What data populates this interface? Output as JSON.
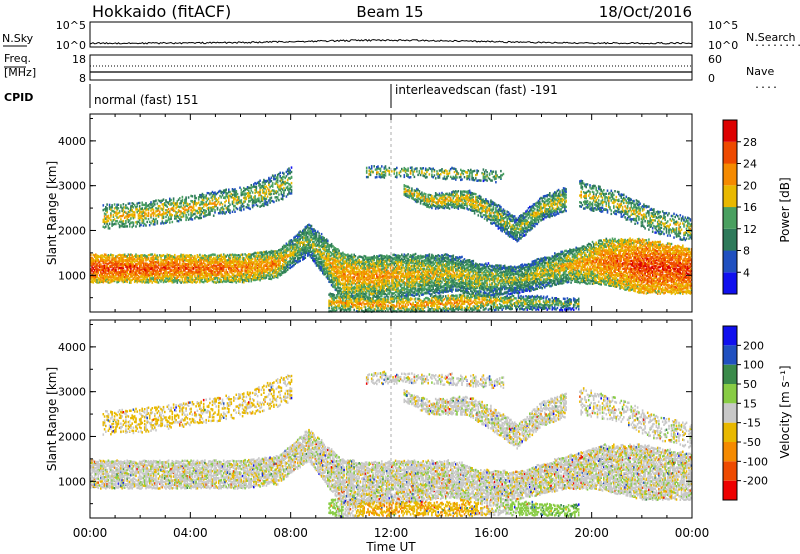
{
  "header": {
    "station": "Hokkaido (fitACF)",
    "beam": "Beam 15",
    "date": "18/Oct/2016"
  },
  "sky_panel": {
    "left_label": "N.Sky",
    "right_label": "N.Search",
    "right_legend": "........",
    "left_ticks": [
      "10^5",
      "10^0"
    ],
    "right_ticks": [
      "10^5",
      "10^0"
    ]
  },
  "freq_panel": {
    "left_label_1": "Freq.",
    "left_label_2": "[MHz]",
    "right_label": "Nave",
    "right_legend": "....",
    "left_ticks": [
      "18",
      "8"
    ],
    "right_ticks": [
      "60",
      "0"
    ]
  },
  "cpid": {
    "label": "CPID",
    "segments": [
      {
        "name": "normal (fast) 151",
        "start_hour": 0,
        "end_hour": 12
      },
      {
        "name": "interleavedscan (fast) -191",
        "start_hour": 12,
        "end_hour": 24
      }
    ]
  },
  "axes": {
    "ylabel": "Slant Range [km]",
    "xlabel": "Time UT",
    "yticks": [
      "1000",
      "2000",
      "3000",
      "4000"
    ],
    "xticks": [
      "00:00",
      "04:00",
      "08:00",
      "12:00",
      "16:00",
      "20:00",
      "00:00"
    ]
  },
  "colors": {
    "power": [
      "#1010ee",
      "#2050c0",
      "#2e7a5a",
      "#4aa060",
      "#e8b800",
      "#f58a00",
      "#ee4a00",
      "#dd0000"
    ],
    "velocity": [
      "#ee0000",
      "#ee4a00",
      "#f58a00",
      "#e8b800",
      "#c8c8c8",
      "#88cc44",
      "#3a8a4a",
      "#2050c0",
      "#1010ee"
    ]
  },
  "chart_data": [
    {
      "type": "heatmap",
      "panel": "power",
      "title": "",
      "xlabel": "",
      "ylabel": "Slant Range [km]",
      "xlim_hours": [
        0,
        24
      ],
      "ylim_km": [
        180,
        4600
      ],
      "colorbar": {
        "label": "Power [dB]",
        "range": [
          0,
          32
        ],
        "ticks": [
          "4",
          "8",
          "12",
          "16",
          "20",
          "24",
          "28"
        ]
      },
      "bands": [
        {
          "label": "main band",
          "t0": 0.0,
          "t1": 24.0,
          "keys": [
            [
              0,
              1150,
              300,
              28
            ],
            [
              3,
              1150,
              300,
              26
            ],
            [
              6,
              1150,
              300,
              24
            ],
            [
              7.5,
              1250,
              300,
              22
            ],
            [
              8,
              1500,
              300,
              18
            ],
            [
              8.7,
              1800,
              350,
              16
            ],
            [
              10,
              1000,
              500,
              22
            ],
            [
              11,
              950,
              450,
              22
            ],
            [
              13,
              1000,
              450,
              20
            ],
            [
              14.5,
              1050,
              400,
              18
            ],
            [
              15.5,
              900,
              350,
              18
            ],
            [
              17,
              900,
              300,
              16
            ],
            [
              19,
              1200,
              350,
              20
            ],
            [
              20.5,
              1300,
              500,
              24
            ],
            [
              22,
              1200,
              600,
              28
            ],
            [
              24,
              1100,
              500,
              28
            ]
          ],
          "density": 0.9
        },
        {
          "label": "lower dense echo",
          "t0": 9.5,
          "t1": 19.5,
          "keys": [
            [
              9.5,
              400,
              200,
              20
            ],
            [
              11,
              350,
              150,
              22
            ],
            [
              13,
              350,
              150,
              22
            ],
            [
              15,
              400,
              180,
              22
            ],
            [
              17,
              400,
              150,
              18
            ],
            [
              19.5,
              350,
              120,
              14
            ]
          ],
          "density": 0.75
        },
        {
          "label": "upper band",
          "t0": 0.5,
          "t1": 8.0,
          "keys": [
            [
              0.5,
              2300,
              250,
              20
            ],
            [
              2,
              2350,
              250,
              20
            ],
            [
              4,
              2500,
              250,
              20
            ],
            [
              6,
              2700,
              250,
              18
            ],
            [
              7.2,
              2900,
              300,
              18
            ],
            [
              8,
              3100,
              300,
              16
            ]
          ],
          "density": 0.55
        },
        {
          "label": "mid echo",
          "t0": 12.5,
          "t1": 19.0,
          "keys": [
            [
              12.5,
              2900,
              120,
              20
            ],
            [
              13.5,
              2650,
              150,
              20
            ],
            [
              15,
              2700,
              200,
              20
            ],
            [
              16,
              2400,
              250,
              18
            ],
            [
              17,
              2000,
              250,
              16
            ],
            [
              18,
              2500,
              250,
              18
            ],
            [
              19,
              2700,
              250,
              18
            ]
          ],
          "density": 0.8
        },
        {
          "label": "3200 km echo",
          "t0": 11.0,
          "t1": 16.5,
          "keys": [
            [
              11,
              3300,
              120,
              18
            ],
            [
              13,
              3300,
              100,
              18
            ],
            [
              15,
              3250,
              120,
              18
            ],
            [
              16.5,
              3200,
              120,
              16
            ]
          ],
          "density": 0.5
        },
        {
          "label": "late band",
          "t0": 19.5,
          "t1": 24.0,
          "keys": [
            [
              19.5,
              2800,
              300,
              18
            ],
            [
              21,
              2600,
              250,
              18
            ],
            [
              22.5,
              2200,
              250,
              18
            ],
            [
              24,
              2000,
              250,
              18
            ]
          ],
          "density": 0.55
        }
      ]
    },
    {
      "type": "heatmap",
      "panel": "velocity",
      "title": "",
      "xlabel": "Time UT",
      "ylabel": "Slant Range [km]",
      "xlim_hours": [
        0,
        24
      ],
      "ylim_km": [
        180,
        4600
      ],
      "colorbar": {
        "label": "Velocity [m s⁻¹]",
        "range": [
          -250,
          250
        ],
        "ticks": [
          "-200",
          "-100",
          "-50",
          "-15",
          "15",
          "50",
          "100",
          "200"
        ]
      },
      "bands": [
        {
          "label": "main band",
          "t0": 0.0,
          "t1": 24.0,
          "keys": [
            [
              0,
              1150,
              300,
              0
            ],
            [
              3,
              1150,
              300,
              0
            ],
            [
              6,
              1150,
              300,
              0
            ],
            [
              7.5,
              1250,
              300,
              0
            ],
            [
              8,
              1500,
              300,
              0
            ],
            [
              8.7,
              1800,
              350,
              0
            ],
            [
              10,
              1000,
              500,
              0
            ],
            [
              11,
              950,
              450,
              0
            ],
            [
              13,
              1000,
              450,
              0
            ],
            [
              14.5,
              1050,
              400,
              0
            ],
            [
              15.5,
              900,
              350,
              0
            ],
            [
              17,
              900,
              300,
              0
            ],
            [
              19,
              1200,
              350,
              0
            ],
            [
              20.5,
              1300,
              500,
              0
            ],
            [
              22,
              1200,
              600,
              0
            ],
            [
              24,
              1100,
              500,
              0
            ]
          ],
          "density": 0.85
        },
        {
          "label": "lower dense echo",
          "t0": 9.5,
          "t1": 19.5,
          "keys": [
            [
              9.5,
              400,
              200,
              40
            ],
            [
              11,
              380,
              140,
              -40
            ],
            [
              13,
              380,
              140,
              -40
            ],
            [
              15,
              400,
              160,
              -40
            ],
            [
              17,
              400,
              140,
              30
            ],
            [
              19.5,
              350,
              120,
              40
            ]
          ],
          "density": 0.6
        },
        {
          "label": "upper band",
          "t0": 0.5,
          "t1": 8.0,
          "keys": [
            [
              0.5,
              2300,
              250,
              -20
            ],
            [
              2,
              2350,
              250,
              -20
            ],
            [
              4,
              2500,
              250,
              -20
            ],
            [
              6,
              2700,
              250,
              -20
            ],
            [
              7.2,
              2900,
              300,
              -20
            ],
            [
              8,
              3100,
              300,
              -20
            ]
          ],
          "density": 0.4
        },
        {
          "label": "mid echo",
          "t0": 12.5,
          "t1": 19.0,
          "keys": [
            [
              12.5,
              2900,
              120,
              0
            ],
            [
              13.5,
              2650,
              150,
              0
            ],
            [
              15,
              2700,
              200,
              0
            ],
            [
              16,
              2400,
              250,
              0
            ],
            [
              17,
              2000,
              250,
              0
            ],
            [
              18,
              2500,
              250,
              0
            ],
            [
              19,
              2700,
              250,
              0
            ]
          ],
          "density": 0.75
        },
        {
          "label": "3200 km echo",
          "t0": 11.0,
          "t1": 16.5,
          "keys": [
            [
              11,
              3300,
              120,
              0
            ],
            [
              13,
              3300,
              100,
              0
            ],
            [
              15,
              3250,
              120,
              0
            ],
            [
              16.5,
              3200,
              120,
              0
            ]
          ],
          "density": 0.45
        },
        {
          "label": "late band",
          "t0": 19.5,
          "t1": 24.0,
          "keys": [
            [
              19.5,
              2800,
              300,
              0
            ],
            [
              21,
              2600,
              250,
              0
            ],
            [
              22.5,
              2200,
              250,
              0
            ],
            [
              24,
              2000,
              250,
              0
            ]
          ],
          "density": 0.4
        }
      ]
    }
  ]
}
